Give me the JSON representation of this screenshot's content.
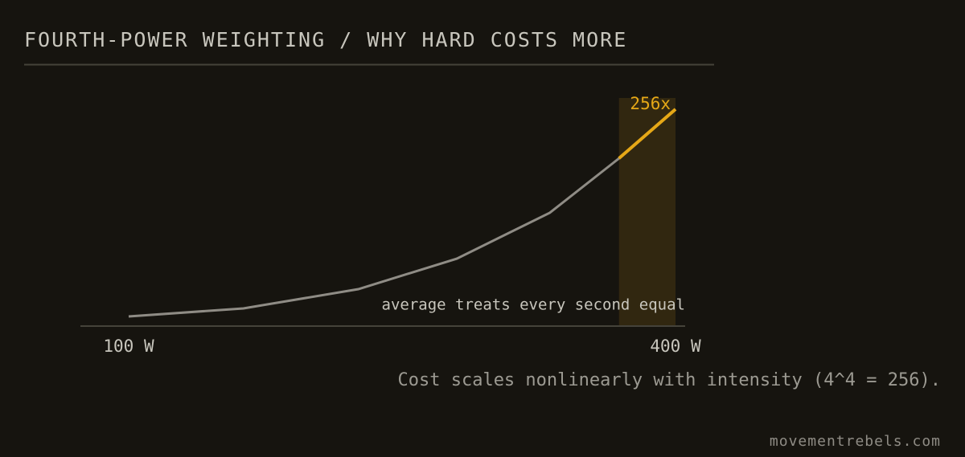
{
  "chart_data": {
    "type": "line",
    "title": "FOURTH-POWER WEIGHTING / WHY HARD COSTS MORE",
    "x": [
      100,
      163,
      226,
      280,
      331,
      369,
      400
    ],
    "series": [
      {
        "name": null,
        "color": "#8f8c85",
        "values": [
          11.4,
          20.9,
          43.6,
          79.6,
          133.7,
          198,
          256
        ],
        "value_labels": [
          null,
          null,
          null,
          null,
          null,
          null,
          "256x"
        ]
      }
    ],
    "xlim": [
      100,
      400
    ],
    "xticks": [
      {
        "value": 100,
        "label": "100 W"
      },
      {
        "value": 400,
        "label": "400 W"
      }
    ],
    "ylim": [
      0,
      256
    ],
    "highlight": {
      "from": 369,
      "to": 400,
      "color": "#e6a817"
    },
    "annotation": "average treats every second equal",
    "caption": "Cost scales nonlinearly with intensity (4^4 = 256).",
    "footer": "movementrebels.com"
  }
}
